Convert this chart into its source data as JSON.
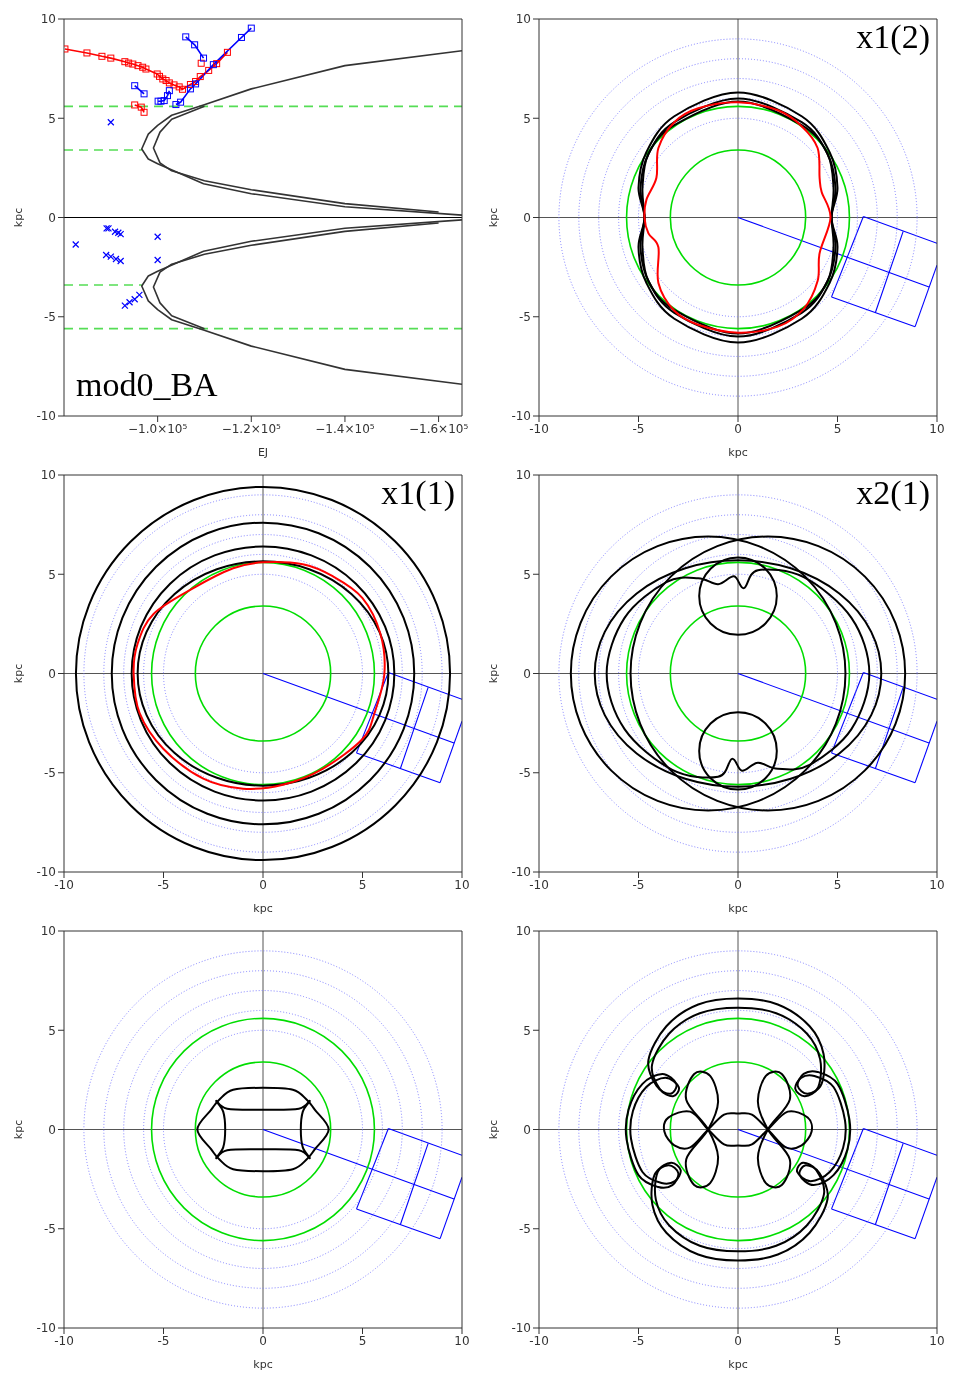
{
  "chart_data": [
    {
      "type": "line",
      "title": "mod0_BA",
      "xlabel": "EJ",
      "ylabel": "kpc",
      "xlim": [
        -80000,
        -165000
      ],
      "xticks": [
        {
          "value": -100000,
          "label": "−1.0×10⁵"
        },
        {
          "value": -120000,
          "label": "−1.2×10⁵"
        },
        {
          "value": -140000,
          "label": "−1.4×10⁵"
        },
        {
          "value": -160000,
          "label": "−1.6×10⁵"
        }
      ],
      "ylim": [
        -10,
        10
      ],
      "yticks": [
        -10,
        -5,
        0,
        5,
        10
      ],
      "ref_lines": [
        {
          "axis": "y",
          "value": 0,
          "color": "#000000"
        }
      ],
      "series": [
        {
          "color": "#55dd55",
          "line_style": "dashed",
          "x": [
            -80000,
            -165000
          ],
          "values": [
            5.6,
            5.6
          ]
        },
        {
          "color": "#55dd55",
          "line_style": "dashed",
          "x": [
            -80000,
            -96600
          ],
          "values": [
            3.4,
            3.4
          ]
        },
        {
          "color": "#55dd55",
          "line_style": "dashed",
          "x": [
            -80000,
            -96600
          ],
          "values": [
            -3.4,
            -3.4
          ]
        },
        {
          "color": "#55dd55",
          "line_style": "dashed",
          "x": [
            -80000,
            -165000
          ],
          "values": [
            -5.6,
            -5.6
          ]
        },
        {
          "color": "#333333",
          "x": [
            -165000,
            -140000,
            -120000,
            -109800,
            -103000,
            -100000,
            -98000,
            -96600,
            -98000,
            -100000,
            -109800,
            -120000,
            -140000,
            -165000
          ],
          "values": [
            8.4,
            7.65,
            6.48,
            5.67,
            5.15,
            4.64,
            4.2,
            3.45,
            2.95,
            2.71,
            1.7,
            1.2,
            0.54,
            0.12
          ]
        },
        {
          "color": "#333333",
          "x": [
            -110000,
            -103000,
            -100500,
            -99100,
            -100500,
            -103000,
            -110000,
            -120000,
            -140000,
            -160000
          ],
          "values": [
            5.6,
            4.95,
            4.3,
            3.5,
            2.75,
            2.35,
            1.85,
            1.4,
            0.7,
            0.28
          ]
        },
        {
          "color": "#333333",
          "x": [
            -165000,
            -140000,
            -120000,
            -109800,
            -103000,
            -100000,
            -98000,
            -96600,
            -98000,
            -100000,
            -109800,
            -120000,
            -140000,
            -165000
          ],
          "values": [
            -8.4,
            -7.65,
            -6.48,
            -5.67,
            -5.15,
            -4.64,
            -4.2,
            -3.45,
            -2.95,
            -2.71,
            -1.7,
            -1.2,
            -0.54,
            -0.12
          ]
        },
        {
          "color": "#333333",
          "x": [
            -110000,
            -103000,
            -100500,
            -99100,
            -100500,
            -103000,
            -110000,
            -120000,
            -140000,
            -160000
          ],
          "values": [
            -5.6,
            -4.95,
            -4.3,
            -3.5,
            -2.75,
            -2.35,
            -1.85,
            -1.4,
            -0.7,
            -0.28
          ]
        },
        {
          "color": "#ff0000",
          "marker": "square",
          "x": [
            -80200,
            -84900,
            -88100,
            -90000,
            -93000,
            -93800,
            -94700,
            -95800,
            -96800,
            -97500,
            -99900,
            -100400,
            -101100,
            -101800,
            -102500,
            -103500,
            -104600,
            -105300,
            -107000,
            -108100,
            -109100,
            -110900,
            -112600,
            -114900
          ],
          "values": [
            8.49,
            8.29,
            8.12,
            8.03,
            7.85,
            7.78,
            7.73,
            7.65,
            7.57,
            7.48,
            7.23,
            7.11,
            6.98,
            6.9,
            6.78,
            6.68,
            6.58,
            6.46,
            6.7,
            6.85,
            7.1,
            7.41,
            7.75,
            8.32
          ]
        },
        {
          "color": "#ff0000",
          "marker": "square",
          "x": [
            -95100,
            -96500,
            -97100
          ],
          "values": [
            5.67,
            5.56,
            5.3
          ]
        },
        {
          "color": "#ff0000",
          "marker": "square",
          "x": [
            -109300
          ],
          "values": [
            7.77
          ]
        },
        {
          "color": "#0000ff",
          "marker": "square",
          "x": [
            -106000,
            -107900,
            -109800
          ],
          "values": [
            9.1,
            8.7,
            8.03
          ]
        },
        {
          "color": "#0000ff",
          "marker": "square",
          "x": [
            -95100,
            -97100
          ],
          "values": [
            6.64,
            6.23
          ]
        },
        {
          "color": "#0000ff",
          "marker": "square",
          "x": [
            -100100,
            -100700,
            -101400,
            -102100,
            -102500
          ],
          "values": [
            5.86,
            5.86,
            5.89,
            6.14,
            6.39
          ]
        },
        {
          "color": "#0000ff",
          "marker": "square",
          "x": [
            -103900,
            -104900,
            -107000,
            -108100,
            -111900,
            -117900,
            -120000
          ],
          "values": [
            5.69,
            5.81,
            6.48,
            6.73,
            7.7,
            9.07,
            9.54
          ]
        },
        {
          "type": "scatter",
          "color": "#0000ff",
          "marker": "cross",
          "x": [
            -90000,
            -82500,
            -89100,
            -89500,
            -90900,
            -91600,
            -92100,
            -89000,
            -90000,
            -91100,
            -92100,
            -100000,
            -100000,
            -93000,
            -94000,
            -95100,
            -96100
          ],
          "values": [
            4.8,
            -1.36,
            -0.55,
            -0.55,
            -0.72,
            -0.77,
            -0.84,
            -1.89,
            -1.97,
            -2.09,
            -2.19,
            -0.97,
            -2.14,
            -4.44,
            -4.27,
            -4.12,
            -3.9
          ]
        }
      ]
    },
    {
      "type": "line",
      "title": "x1(2)",
      "xlabel": "kpc",
      "ylabel": "kpc",
      "xlim": [
        -10,
        10
      ],
      "xticks": [
        -10,
        -5,
        0,
        5,
        10
      ],
      "ylim": [
        -10,
        10
      ],
      "yticks": [
        -10,
        -5,
        0,
        5,
        10
      ],
      "ref_lines": [
        {
          "axis": "x",
          "value": 0,
          "color": "#555555"
        },
        {
          "axis": "y",
          "value": 0,
          "color": "#555555"
        }
      ],
      "series": [
        {
          "color": "#0000ff",
          "x": [
            0,
            9.6
          ],
          "values": [
            0,
            -3.5
          ]
        },
        {
          "color": "#0000ff",
          "x": [
            4.7,
            6.3
          ],
          "values": [
            -4,
            0.05
          ]
        },
        {
          "color": "#0000ff",
          "x": [
            6.3,
            10
          ],
          "values": [
            0.05,
            -1.3
          ]
        },
        {
          "color": "#0000ff",
          "x": [
            10,
            8.9
          ],
          "values": [
            -2.4,
            -5.5
          ]
        },
        {
          "color": "#0000ff",
          "x": [
            8.9,
            4.7
          ],
          "values": [
            -5.5,
            -4
          ]
        },
        {
          "color": "#0000ff",
          "x": [
            8.3,
            6.9
          ],
          "values": [
            -0.7,
            -4.8
          ]
        }
      ]
    },
    {
      "type": "line",
      "title": "x1(1)",
      "xlabel": "kpc",
      "ylabel": "kpc",
      "xlim": [
        -10,
        10
      ],
      "xticks": [
        -10,
        -5,
        0,
        5,
        10
      ],
      "ylim": [
        -10,
        10
      ],
      "yticks": [
        -10,
        -5,
        0,
        5,
        10
      ],
      "ref_lines": [
        {
          "axis": "x",
          "value": 0,
          "color": "#555555"
        },
        {
          "axis": "y",
          "value": 0,
          "color": "#555555"
        }
      ],
      "series": [
        {
          "color": "#0000ff",
          "x": [
            0,
            9.6
          ],
          "values": [
            0,
            -3.5
          ]
        },
        {
          "color": "#0000ff",
          "x": [
            4.7,
            6.3
          ],
          "values": [
            -4,
            0.05
          ]
        },
        {
          "color": "#0000ff",
          "x": [
            6.3,
            10
          ],
          "values": [
            0.05,
            -1.3
          ]
        },
        {
          "color": "#0000ff",
          "x": [
            10,
            8.9
          ],
          "values": [
            -2.4,
            -5.5
          ]
        },
        {
          "color": "#0000ff",
          "x": [
            8.9,
            4.7
          ],
          "values": [
            -5.5,
            -4
          ]
        },
        {
          "color": "#0000ff",
          "x": [
            8.3,
            6.9
          ],
          "values": [
            -0.7,
            -4.8
          ]
        }
      ]
    },
    {
      "type": "line",
      "title": "x2(1)",
      "xlabel": "kpc",
      "ylabel": "kpc",
      "xlim": [
        -10,
        10
      ],
      "xticks": [
        -10,
        -5,
        0,
        5,
        10
      ],
      "ylim": [
        -10,
        10
      ],
      "yticks": [
        -10,
        -5,
        0,
        5,
        10
      ],
      "ref_lines": [
        {
          "axis": "x",
          "value": 0,
          "color": "#555555"
        },
        {
          "axis": "y",
          "value": 0,
          "color": "#555555"
        }
      ],
      "series": [
        {
          "color": "#0000ff",
          "x": [
            0,
            9.6
          ],
          "values": [
            0,
            -3.5
          ]
        },
        {
          "color": "#0000ff",
          "x": [
            4.7,
            6.3
          ],
          "values": [
            -4,
            0.05
          ]
        },
        {
          "color": "#0000ff",
          "x": [
            6.3,
            10
          ],
          "values": [
            0.05,
            -1.3
          ]
        },
        {
          "color": "#0000ff",
          "x": [
            10,
            8.9
          ],
          "values": [
            -2.4,
            -5.5
          ]
        },
        {
          "color": "#0000ff",
          "x": [
            8.9,
            4.7
          ],
          "values": [
            -5.5,
            -4
          ]
        },
        {
          "color": "#0000ff",
          "x": [
            8.3,
            6.9
          ],
          "values": [
            -0.7,
            -4.8
          ]
        }
      ]
    },
    {
      "type": "line",
      "xlabel": "kpc",
      "ylabel": "kpc",
      "xlim": [
        -10,
        10
      ],
      "xticks": [
        -10,
        -5,
        0,
        5,
        10
      ],
      "ylim": [
        -10,
        10
      ],
      "yticks": [
        -10,
        -5,
        0,
        5,
        10
      ],
      "ref_lines": [
        {
          "axis": "x",
          "value": 0,
          "color": "#555555"
        },
        {
          "axis": "y",
          "value": 0,
          "color": "#555555"
        }
      ],
      "series": [
        {
          "color": "#0000ff",
          "x": [
            0,
            9.6
          ],
          "values": [
            0,
            -3.5
          ]
        },
        {
          "color": "#0000ff",
          "x": [
            4.7,
            6.3
          ],
          "values": [
            -4,
            0.05
          ]
        },
        {
          "color": "#0000ff",
          "x": [
            6.3,
            10
          ],
          "values": [
            0.05,
            -1.3
          ]
        },
        {
          "color": "#0000ff",
          "x": [
            10,
            8.9
          ],
          "values": [
            -2.4,
            -5.5
          ]
        },
        {
          "color": "#0000ff",
          "x": [
            8.9,
            4.7
          ],
          "values": [
            -5.5,
            -4
          ]
        },
        {
          "color": "#0000ff",
          "x": [
            8.3,
            6.9
          ],
          "values": [
            -0.7,
            -4.8
          ]
        }
      ]
    },
    {
      "type": "line",
      "xlabel": "kpc",
      "ylabel": "kpc",
      "xlim": [
        -10,
        10
      ],
      "xticks": [
        -10,
        -5,
        0,
        5,
        10
      ],
      "ylim": [
        -10,
        10
      ],
      "yticks": [
        -10,
        -5,
        0,
        5,
        10
      ],
      "ref_lines": [
        {
          "axis": "x",
          "value": 0,
          "color": "#555555"
        },
        {
          "axis": "y",
          "value": 0,
          "color": "#555555"
        }
      ],
      "series": [
        {
          "color": "#0000ff",
          "x": [
            0,
            9.6
          ],
          "values": [
            0,
            -3.5
          ]
        },
        {
          "color": "#0000ff",
          "x": [
            4.7,
            6.3
          ],
          "values": [
            -4,
            0.05
          ]
        },
        {
          "color": "#0000ff",
          "x": [
            6.3,
            10
          ],
          "values": [
            0.05,
            -1.3
          ]
        },
        {
          "color": "#0000ff",
          "x": [
            10,
            8.9
          ],
          "values": [
            -2.4,
            -5.5
          ]
        },
        {
          "color": "#0000ff",
          "x": [
            8.9,
            4.7
          ],
          "values": [
            -5.5,
            -4
          ]
        },
        {
          "color": "#0000ff",
          "x": [
            8.3,
            6.9
          ],
          "values": [
            -0.7,
            -4.8
          ]
        }
      ]
    }
  ]
}
